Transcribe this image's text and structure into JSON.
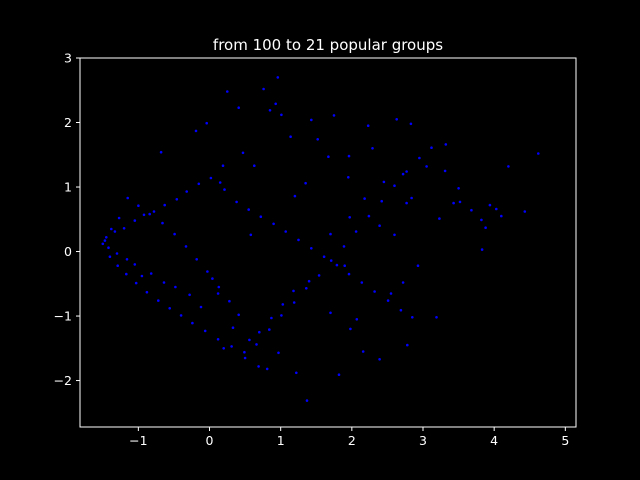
{
  "colors": {
    "background": "#000000",
    "foreground": "#ffffff",
    "points": "#0000ff"
  },
  "chart_data": {
    "type": "scatter",
    "title": "from 100 to 21 popular groups",
    "xlabel": "",
    "ylabel": "",
    "xlim": [
      -1.82,
      5.15
    ],
    "ylim": [
      -2.72,
      3.0
    ],
    "grid": false,
    "x_ticks": [
      -1,
      0,
      1,
      2,
      3,
      4,
      5
    ],
    "y_ticks": [
      -2,
      -1,
      0,
      1,
      2,
      3
    ],
    "x_tick_labels": [
      "−1",
      "0",
      "1",
      "2",
      "3",
      "4",
      "5"
    ],
    "y_tick_labels": [
      "−2",
      "−1",
      "0",
      "1",
      "2",
      "3"
    ],
    "series": [
      {
        "color": "#0000ff",
        "points": [
          [
            4.62,
            1.52
          ],
          [
            4.2,
            1.32
          ],
          [
            4.43,
            0.62
          ],
          [
            4.03,
            0.66
          ],
          [
            3.94,
            0.72
          ],
          [
            3.82,
            0.49
          ],
          [
            3.83,
            0.03
          ],
          [
            3.52,
            0.77
          ],
          [
            3.43,
            0.75
          ],
          [
            3.32,
            1.66
          ],
          [
            3.05,
            1.32
          ],
          [
            3.23,
            0.51
          ],
          [
            3.19,
            -1.02
          ],
          [
            2.72,
            1.2
          ],
          [
            2.84,
            0.83
          ],
          [
            2.83,
            1.98
          ],
          [
            2.63,
            2.05
          ],
          [
            2.77,
            0.75
          ],
          [
            2.6,
            0.26
          ],
          [
            2.93,
            -0.22
          ],
          [
            2.72,
            -0.48
          ],
          [
            2.78,
            -1.45
          ],
          [
            2.55,
            -0.65
          ],
          [
            2.45,
            1.08
          ],
          [
            2.39,
            0.4
          ],
          [
            2.29,
            1.6
          ],
          [
            2.23,
            1.95
          ],
          [
            2.18,
            0.82
          ],
          [
            2.16,
            -1.55
          ],
          [
            2.39,
            -1.67
          ],
          [
            2.07,
            -1.05
          ],
          [
            1.96,
            1.48
          ],
          [
            1.95,
            1.15
          ],
          [
            1.97,
            0.53
          ],
          [
            1.9,
            -0.22
          ],
          [
            1.98,
            -1.2
          ],
          [
            1.82,
            -1.91
          ],
          [
            1.75,
            2.11
          ],
          [
            1.67,
            1.47
          ],
          [
            1.7,
            0.27
          ],
          [
            1.7,
            -0.95
          ],
          [
            1.52,
            1.74
          ],
          [
            1.43,
            2.04
          ],
          [
            1.35,
            1.06
          ],
          [
            1.4,
            -0.46
          ],
          [
            1.37,
            -2.31
          ],
          [
            1.22,
            -1.88
          ],
          [
            1.2,
            0.86
          ],
          [
            1.14,
            1.78
          ],
          [
            1.01,
            2.12
          ],
          [
            0.96,
            2.7
          ],
          [
            0.93,
            2.29
          ],
          [
            0.85,
            2.19
          ],
          [
            0.76,
            2.52
          ],
          [
            0.63,
            1.33
          ],
          [
            0.58,
            0.26
          ],
          [
            0.47,
            1.53
          ],
          [
            0.41,
            2.23
          ],
          [
            0.25,
            2.48
          ],
          [
            0.19,
            1.33
          ],
          [
            0.15,
            1.07
          ],
          [
            -0.04,
            1.99
          ],
          [
            -0.19,
            1.87
          ],
          [
            -0.68,
            1.54
          ],
          [
            0.81,
            -1.82
          ],
          [
            0.69,
            -1.78
          ],
          [
            0.97,
            -1.57
          ],
          [
            0.5,
            -1.65
          ],
          [
            0.33,
            -1.18
          ],
          [
            0.2,
            -1.5
          ],
          [
            0.12,
            -0.65
          ],
          [
            0.04,
            -0.42
          ],
          [
            -0.12,
            -0.86
          ],
          [
            -0.28,
            -0.67
          ],
          [
            -0.48,
            -0.55
          ],
          [
            -0.64,
            -0.48
          ],
          [
            -0.82,
            -0.34
          ],
          [
            -0.95,
            -0.38
          ],
          [
            -1.05,
            -0.2
          ],
          [
            -1.16,
            -0.12
          ],
          [
            -1.3,
            -0.03
          ],
          [
            -1.42,
            0.06
          ],
          [
            -1.5,
            0.12
          ],
          [
            -1.45,
            0.22
          ],
          [
            -1.33,
            0.31
          ],
          [
            -1.2,
            0.36
          ],
          [
            -1.05,
            0.48
          ],
          [
            -0.92,
            0.57
          ],
          [
            -0.78,
            0.62
          ],
          [
            -0.63,
            0.72
          ],
          [
            -0.46,
            0.81
          ],
          [
            -0.32,
            0.93
          ],
          [
            -0.15,
            1.05
          ],
          [
            0.02,
            1.14
          ],
          [
            0.21,
            0.96
          ],
          [
            0.38,
            0.77
          ],
          [
            0.55,
            0.65
          ],
          [
            0.72,
            0.54
          ],
          [
            0.9,
            0.43
          ],
          [
            1.07,
            0.31
          ],
          [
            1.25,
            0.18
          ],
          [
            1.43,
            0.05
          ],
          [
            1.61,
            -0.08
          ],
          [
            1.79,
            -0.21
          ],
          [
            1.96,
            -0.35
          ],
          [
            2.14,
            -0.48
          ],
          [
            2.32,
            -0.62
          ],
          [
            2.51,
            -0.76
          ],
          [
            2.69,
            -0.91
          ],
          [
            2.85,
            -1.02
          ],
          [
            1.18,
            -0.61
          ],
          [
            1.03,
            -0.82
          ],
          [
            0.87,
            -1.03
          ],
          [
            0.7,
            -1.25
          ],
          [
            0.56,
            -1.37
          ],
          [
            0.41,
            -0.98
          ],
          [
            0.28,
            -0.77
          ],
          [
            0.13,
            -0.55
          ],
          [
            -0.03,
            -0.31
          ],
          [
            -0.18,
            -0.12
          ],
          [
            -0.33,
            0.08
          ],
          [
            -0.49,
            0.27
          ],
          [
            -0.66,
            0.44
          ],
          [
            -0.84,
            0.58
          ],
          [
            -1.0,
            0.71
          ],
          [
            -1.15,
            0.83
          ],
          [
            -1.27,
            0.52
          ],
          [
            -1.38,
            0.35
          ],
          [
            -1.47,
            0.17
          ],
          [
            -1.4,
            -0.08
          ],
          [
            -1.29,
            -0.22
          ],
          [
            -1.17,
            -0.35
          ],
          [
            -1.03,
            -0.49
          ],
          [
            -0.88,
            -0.63
          ],
          [
            -0.72,
            -0.76
          ],
          [
            -0.56,
            -0.88
          ],
          [
            -0.4,
            -0.99
          ],
          [
            -0.24,
            -1.11
          ],
          [
            -0.06,
            -1.23
          ],
          [
            0.12,
            -1.36
          ],
          [
            0.31,
            -1.47
          ],
          [
            0.49,
            -1.56
          ],
          [
            0.66,
            -1.44
          ],
          [
            0.84,
            -1.21
          ],
          [
            1.01,
            -0.99
          ],
          [
            1.19,
            -0.79
          ],
          [
            1.36,
            -0.57
          ],
          [
            1.54,
            -0.37
          ],
          [
            1.71,
            -0.14
          ],
          [
            1.89,
            0.08
          ],
          [
            2.06,
            0.31
          ],
          [
            2.24,
            0.55
          ],
          [
            2.42,
            0.78
          ],
          [
            2.6,
            1.02
          ],
          [
            2.77,
            1.24
          ],
          [
            2.95,
            1.45
          ],
          [
            3.12,
            1.61
          ],
          [
            3.31,
            1.25
          ],
          [
            3.5,
            0.98
          ],
          [
            3.68,
            0.64
          ],
          [
            3.88,
            0.37
          ],
          [
            4.1,
            0.55
          ]
        ]
      }
    ]
  }
}
